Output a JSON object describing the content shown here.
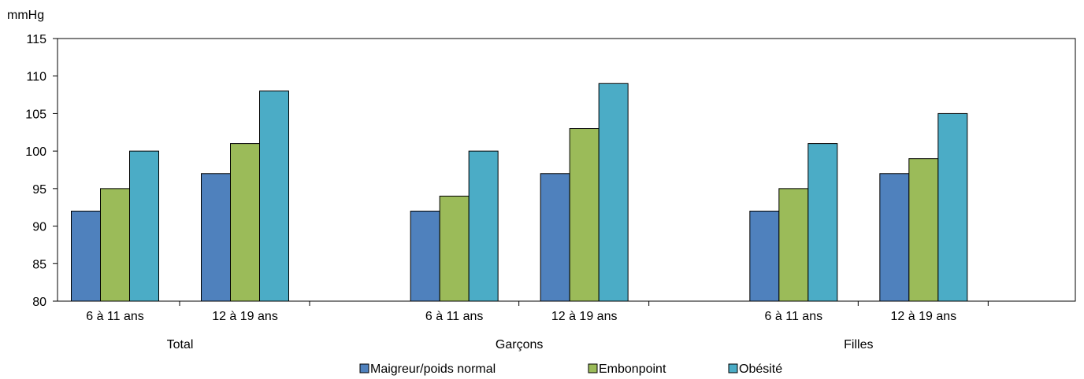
{
  "chart_data": {
    "type": "bar",
    "ylabel": "mmHg",
    "ylim": [
      80,
      115
    ],
    "yticks": [
      80,
      85,
      90,
      95,
      100,
      105,
      110,
      115
    ],
    "grid": false,
    "legend_position": "bottom",
    "groups": [
      {
        "label": "Total",
        "categories": [
          "6 à 11 ans",
          "12 à 19 ans"
        ]
      },
      {
        "label": "Garçons",
        "categories": [
          "6 à 11 ans",
          "12 à 19 ans"
        ]
      },
      {
        "label": "Filles",
        "categories": [
          "6 à 11 ans",
          "12 à 19 ans"
        ]
      }
    ],
    "series": [
      {
        "name": "Maigreur/poids normal",
        "color": "#4F81BD",
        "values": [
          92,
          97,
          92,
          97,
          92,
          97
        ]
      },
      {
        "name": "Embonpoint",
        "color": "#9BBB59",
        "values": [
          95,
          101,
          94,
          103,
          95,
          99
        ]
      },
      {
        "name": "Obésité",
        "color": "#4BACC6",
        "values": [
          100,
          108,
          100,
          109,
          101,
          105
        ]
      }
    ]
  }
}
